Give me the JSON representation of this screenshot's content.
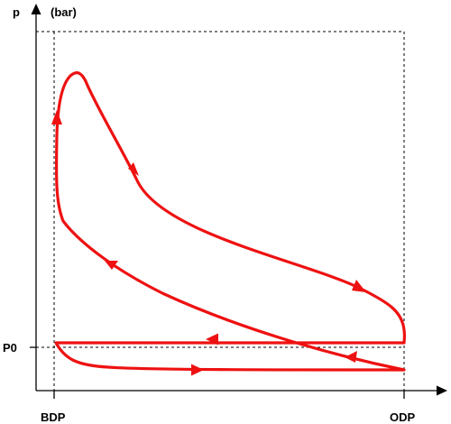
{
  "labels": {
    "p_axis": "p",
    "p_unit": "(bar)",
    "p0": "P0",
    "bdp": "BDP",
    "odp": "ODP"
  },
  "colors": {
    "curve": "#ee1111",
    "axis": "#000000"
  }
}
